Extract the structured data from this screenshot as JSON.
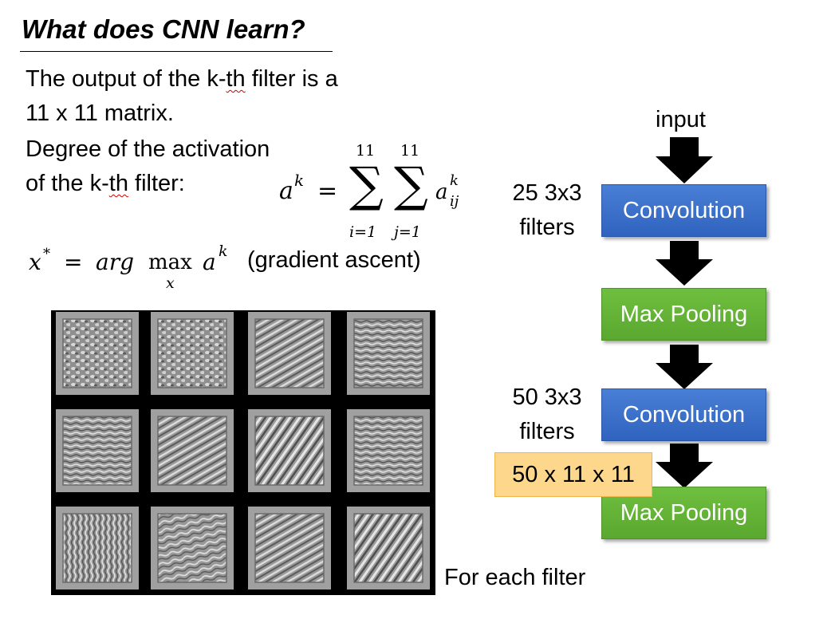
{
  "title": "What does CNN learn?",
  "text": {
    "line1": "The output of the k-th filter is a",
    "line2": "11 x 11 matrix.",
    "line3": "Degree of the activation",
    "line4": "of the k-th filter:",
    "gradient": "(gradient ascent)",
    "for_each": "For each filter"
  },
  "formula_a": {
    "lhs": "a",
    "lhs_sup": "k",
    "eq": "=",
    "sum_upper_1": "11",
    "sum_upper_2": "11",
    "sum_lower_1": "i=1",
    "sum_lower_2": "j=1",
    "sigma": "∑",
    "term": "a",
    "term_sup": "k",
    "term_sub": "ij"
  },
  "formula_x": {
    "x": "x",
    "star": "*",
    "eq": "=",
    "arg": "arg",
    "max": "max",
    "max_sub": "x",
    "a": "a",
    "a_sup": "k"
  },
  "diagram": {
    "input": "input",
    "filters_1_line1": "25 3x3",
    "filters_1_line2": "filters",
    "filters_2_line1": "50 3x3",
    "filters_2_line2": "filters",
    "conv1": "Convolution",
    "pool1": "Max Pooling",
    "conv2": "Convolution",
    "pool2": "Max Pooling",
    "output_shape": "50 x 11 x 11",
    "colors": {
      "convolution": "#3a6fcc",
      "max_pooling": "#63b235",
      "shape_box": "#fdd78b",
      "arrow": "#000000"
    }
  },
  "filter_grid": {
    "rows": 3,
    "cols": 4,
    "tiles": [
      {
        "pattern": "blob"
      },
      {
        "pattern": "blob"
      },
      {
        "pattern": "diag"
      },
      {
        "pattern": "horiz"
      },
      {
        "pattern": "horiz"
      },
      {
        "pattern": "diag"
      },
      {
        "pattern": "diag-strong"
      },
      {
        "pattern": "horiz"
      },
      {
        "pattern": "vert"
      },
      {
        "pattern": "wavy"
      },
      {
        "pattern": "diag"
      },
      {
        "pattern": "diag-strong"
      }
    ]
  }
}
